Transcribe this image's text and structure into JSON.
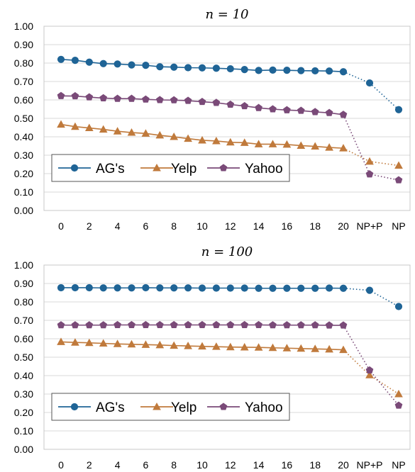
{
  "colors": {
    "AG's": "#1f6496",
    "Yelp": "#c07a3c",
    "Yahoo": "#7a4a78"
  },
  "chart_data": [
    {
      "type": "line",
      "title": "n = 10",
      "categories": [
        "0",
        "1",
        "2",
        "3",
        "4",
        "5",
        "6",
        "7",
        "8",
        "9",
        "10",
        "11",
        "12",
        "13",
        "14",
        "15",
        "16",
        "17",
        "18",
        "19",
        "20",
        "NP+P",
        "NP"
      ],
      "x_tick_labels": [
        "0",
        "2",
        "4",
        "6",
        "8",
        "10",
        "12",
        "14",
        "16",
        "18",
        "20",
        "NP+P",
        "NP"
      ],
      "y_tick_labels": [
        "0.00",
        "0.10",
        "0.20",
        "0.30",
        "0.40",
        "0.50",
        "0.60",
        "0.70",
        "0.80",
        "0.90",
        "1.00"
      ],
      "ylim": [
        0,
        1
      ],
      "grid": true,
      "legend_position": "bottom-left",
      "series": [
        {
          "name": "AG's",
          "marker": "circle",
          "values": [
            0.82,
            0.815,
            0.805,
            0.797,
            0.795,
            0.79,
            0.788,
            0.78,
            0.778,
            0.775,
            0.774,
            0.772,
            0.769,
            0.765,
            0.76,
            0.762,
            0.761,
            0.759,
            0.758,
            0.757,
            0.753,
            0.692,
            0.547
          ]
        },
        {
          "name": "Yelp",
          "marker": "triangle",
          "values": [
            0.467,
            0.455,
            0.448,
            0.44,
            0.43,
            0.423,
            0.418,
            0.408,
            0.4,
            0.39,
            0.381,
            0.377,
            0.37,
            0.368,
            0.36,
            0.36,
            0.358,
            0.352,
            0.348,
            0.342,
            0.338,
            0.266,
            0.244
          ]
        },
        {
          "name": "Yahoo",
          "marker": "pentagon",
          "values": [
            0.622,
            0.621,
            0.615,
            0.61,
            0.607,
            0.607,
            0.603,
            0.6,
            0.599,
            0.596,
            0.59,
            0.585,
            0.575,
            0.567,
            0.557,
            0.55,
            0.545,
            0.542,
            0.535,
            0.53,
            0.52,
            0.197,
            0.165
          ]
        }
      ]
    },
    {
      "type": "line",
      "title": "n = 100",
      "categories": [
        "0",
        "1",
        "2",
        "3",
        "4",
        "5",
        "6",
        "7",
        "8",
        "9",
        "10",
        "11",
        "12",
        "13",
        "14",
        "15",
        "16",
        "17",
        "18",
        "19",
        "20",
        "NP+P",
        "NP"
      ],
      "x_tick_labels": [
        "0",
        "2",
        "4",
        "6",
        "8",
        "10",
        "12",
        "14",
        "16",
        "18",
        "20",
        "NP+P",
        "NP"
      ],
      "y_tick_labels": [
        "0.00",
        "0.10",
        "0.20",
        "0.30",
        "0.40",
        "0.50",
        "0.60",
        "0.70",
        "0.80",
        "0.90",
        "1.00"
      ],
      "ylim": [
        0,
        1
      ],
      "grid": true,
      "legend_position": "bottom-left",
      "series": [
        {
          "name": "AG's",
          "marker": "circle",
          "values": [
            0.877,
            0.877,
            0.877,
            0.876,
            0.876,
            0.876,
            0.877,
            0.876,
            0.876,
            0.876,
            0.875,
            0.875,
            0.875,
            0.875,
            0.874,
            0.874,
            0.874,
            0.874,
            0.874,
            0.875,
            0.874,
            0.863,
            0.775
          ]
        },
        {
          "name": "Yelp",
          "marker": "triangle",
          "values": [
            0.583,
            0.58,
            0.578,
            0.575,
            0.572,
            0.57,
            0.568,
            0.566,
            0.563,
            0.561,
            0.559,
            0.557,
            0.555,
            0.554,
            0.553,
            0.551,
            0.549,
            0.547,
            0.545,
            0.543,
            0.54,
            0.403,
            0.3
          ]
        },
        {
          "name": "Yahoo",
          "marker": "pentagon",
          "values": [
            0.674,
            0.674,
            0.674,
            0.674,
            0.675,
            0.675,
            0.675,
            0.675,
            0.675,
            0.675,
            0.675,
            0.675,
            0.675,
            0.675,
            0.675,
            0.674,
            0.674,
            0.674,
            0.674,
            0.673,
            0.673,
            0.429,
            0.238
          ]
        }
      ]
    }
  ]
}
